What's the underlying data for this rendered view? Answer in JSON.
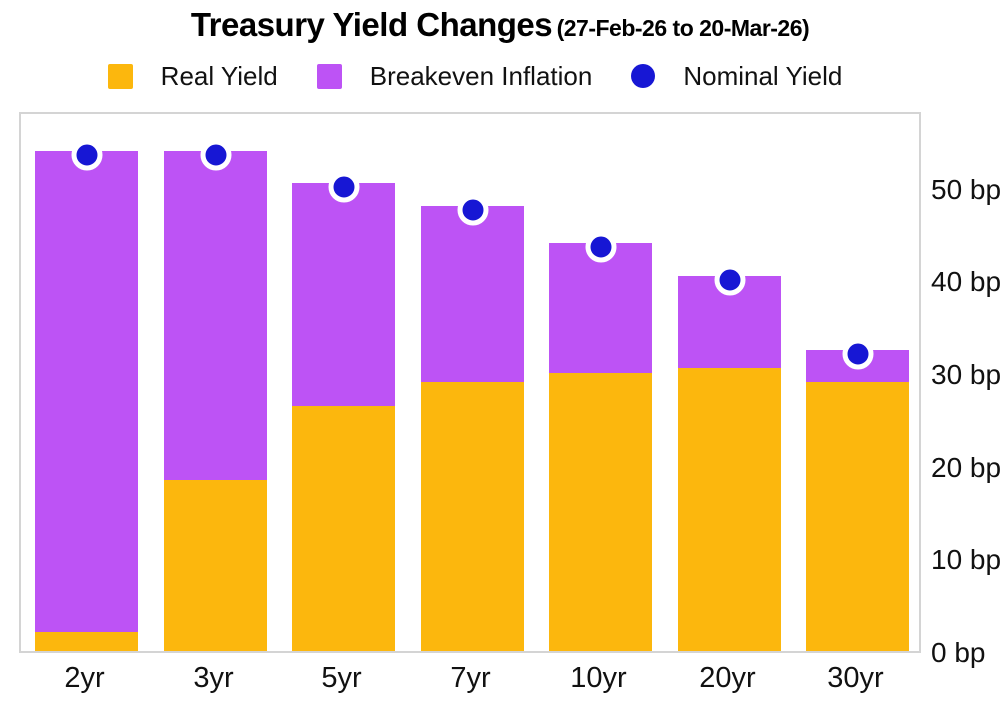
{
  "chart_data": {
    "type": "bar",
    "stacked": true,
    "title": "Treasury Yield Changes",
    "subtitle": "(27-Feb-26 to 20-Mar-26)",
    "categories": [
      "2yr",
      "3yr",
      "5yr",
      "7yr",
      "10yr",
      "20yr",
      "30yr"
    ],
    "series": [
      {
        "name": "Real Yield",
        "type": "bar",
        "color": "#FCB70D",
        "values": [
          2,
          18.5,
          26.5,
          29,
          30,
          30.5,
          29
        ]
      },
      {
        "name": "Breakeven Inflation",
        "type": "bar",
        "color": "#BD53F5",
        "values": [
          52,
          35.5,
          24,
          19,
          14,
          10,
          3.5
        ]
      },
      {
        "name": "Nominal Yield",
        "type": "scatter",
        "color": "#1717D4",
        "values": [
          54,
          54,
          50.5,
          48,
          44,
          40.5,
          32.5
        ]
      }
    ],
    "ylabel": "",
    "xlabel": "",
    "ylim": [
      0,
      58.4
    ],
    "yticks": [
      0,
      10,
      20,
      30,
      40,
      50
    ],
    "ytick_suffix": " bp",
    "grid": false,
    "legend_position": "top",
    "plot_border_color": "#d4d4d4",
    "background_color": "#ffffff"
  }
}
